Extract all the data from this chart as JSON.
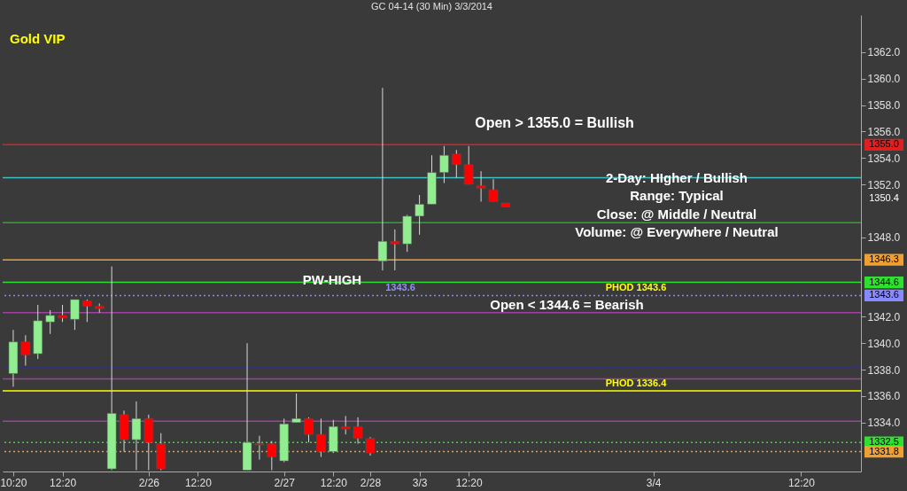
{
  "chart_data": {
    "type": "candlestick",
    "title": "GC 04-14 (30 Min)  3/3/2014",
    "categories": [
      "10:20",
      null,
      null,
      null,
      "12:20",
      null,
      null,
      null,
      null,
      null,
      null,
      "2/26",
      null,
      null,
      null,
      "12:20",
      null,
      null,
      null,
      null,
      null,
      null,
      "2/27",
      null,
      null,
      null,
      "12:20",
      null,
      null,
      "2/28",
      null,
      null,
      null,
      "3/3",
      null,
      null,
      null,
      "12:20",
      null,
      null,
      null,
      null,
      null,
      null,
      null,
      null,
      null,
      null,
      null,
      null,
      null,
      null,
      "3/4",
      null,
      null,
      null,
      null,
      null,
      null,
      null,
      null,
      null,
      null,
      null,
      "12:20",
      null,
      null,
      null,
      null
    ],
    "ohlc": [
      [
        1337.7,
        1341.0,
        1336.7,
        1340.1
      ],
      [
        1340.1,
        1340.6,
        1338.3,
        1339.1
      ],
      [
        1339.2,
        1342.9,
        1338.8,
        1341.7
      ],
      [
        1341.6,
        1342.5,
        1340.7,
        1342.1
      ],
      [
        1342.1,
        1342.9,
        1341.6,
        1341.9
      ],
      [
        1341.8,
        1343.3,
        1341.0,
        1343.3
      ],
      [
        1343.2,
        1343.3,
        1341.6,
        1342.8
      ],
      [
        1342.8,
        1343.0,
        1342.3,
        1342.6
      ],
      [
        1330.5,
        1345.8,
        1330.4,
        1334.7
      ],
      [
        1334.6,
        1334.9,
        1331.8,
        1332.7
      ],
      [
        1332.7,
        1335.6,
        1330.4,
        1334.3
      ],
      [
        1334.3,
        1334.6,
        1330.4,
        1332.5
      ],
      [
        1332.4,
        1333.2,
        1330.4,
        1330.5
      ],
      null,
      null,
      null,
      null,
      null,
      null,
      [
        1330.4,
        1340.0,
        1330.4,
        1332.5
      ],
      [
        1332.4,
        1333.0,
        1331.2,
        1332.3
      ],
      [
        1332.4,
        1332.6,
        1330.4,
        1331.4
      ],
      [
        1331.1,
        1334.3,
        1331.0,
        1333.9
      ],
      [
        1334.0,
        1336.2,
        1334.0,
        1334.3
      ],
      [
        1334.3,
        1334.4,
        1332.5,
        1333.1
      ],
      [
        1333.1,
        1334.3,
        1331.4,
        1331.8
      ],
      [
        1331.8,
        1334.2,
        1331.7,
        1333.7
      ],
      [
        1333.7,
        1334.5,
        1333.1,
        1333.5
      ],
      [
        1333.7,
        1334.4,
        1332.4,
        1332.8
      ],
      [
        1332.8,
        1332.9,
        1331.5,
        1331.7
      ],
      [
        1346.2,
        1359.3,
        1345.5,
        1347.7
      ],
      [
        1347.7,
        1348.6,
        1345.5,
        1347.5
      ],
      [
        1347.5,
        1349.7,
        1346.9,
        1349.6
      ],
      [
        1349.6,
        1351.2,
        1348.2,
        1350.5
      ],
      [
        1350.5,
        1354.2,
        1350.5,
        1352.9
      ],
      [
        1352.9,
        1354.9,
        1352.1,
        1354.2
      ],
      [
        1354.3,
        1354.6,
        1352.5,
        1353.5
      ],
      [
        1353.5,
        1354.9,
        1352.0,
        1352.0
      ],
      [
        1351.9,
        1353.0,
        1350.7,
        1351.7
      ],
      [
        1351.6,
        1352.4,
        1350.7,
        1350.7
      ],
      [
        1350.6,
        1350.6,
        1350.3,
        1350.3
      ],
      null,
      null,
      null,
      null,
      null,
      null,
      null,
      null,
      null,
      null,
      null,
      null,
      null,
      null,
      null,
      null,
      null,
      null,
      null,
      null,
      null,
      null,
      null,
      null,
      null,
      null,
      null,
      null
    ],
    "colors": [
      "#90ee90",
      "#ff0000",
      "#90ee90",
      "#90ee90",
      "#ff0000",
      "#90ee90",
      "#ff0000",
      "#ff0000",
      "#90ee90",
      "#ff0000",
      "#90ee90",
      "#ff0000",
      "#ff0000",
      null,
      null,
      null,
      null,
      null,
      null,
      "#90ee90",
      "#ff0000",
      "#ff0000",
      "#90ee90",
      "#90ee90",
      "#ff0000",
      "#ff0000",
      "#90ee90",
      "#ff0000",
      "#ff0000",
      "#ff0000",
      "#90ee90",
      "#ff0000",
      "#90ee90",
      "#90ee90",
      "#90ee90",
      "#90ee90",
      "#ff0000",
      "#ff0000",
      "#ff0000",
      "#ff0000",
      "#ff0000",
      null,
      null,
      null,
      null,
      null,
      null,
      null,
      null,
      null,
      null,
      null,
      null,
      null,
      null,
      null,
      null,
      null,
      null,
      null,
      null,
      null,
      null,
      null,
      null,
      null,
      null,
      null,
      null
    ],
    "ylim": [
      1330.3,
      1364.8
    ],
    "yticks": [
      {
        "value": 1334,
        "label": "1334.0"
      },
      {
        "value": 1336,
        "label": "1336.0"
      },
      {
        "value": 1338,
        "label": "1338.0"
      },
      {
        "value": 1340,
        "label": "1340.0"
      },
      {
        "value": 1342,
        "label": "1342.0"
      },
      {
        "value": 1348,
        "label": "1348.0"
      },
      {
        "value": 1352,
        "label": "1352.0"
      },
      {
        "value": 1354,
        "label": "1354.0"
      },
      {
        "value": 1356,
        "label": "1356.0"
      },
      {
        "value": 1358,
        "label": "1358.0"
      },
      {
        "value": 1360,
        "label": "1360.0"
      },
      {
        "value": 1362,
        "label": "1362.0"
      }
    ],
    "ref_lines": [
      {
        "axis": "y",
        "value": 1355.0,
        "label": "1355.0",
        "color": "#e02020"
      },
      {
        "axis": "y",
        "value": 1352.5,
        "label": null,
        "color": "#40c0c0"
      },
      {
        "axis": "y",
        "value": 1349.1,
        "label": null,
        "color": "#20b020"
      },
      {
        "axis": "y",
        "value": 1346.3,
        "label": "1346.3",
        "color": "#f0a030"
      },
      {
        "axis": "y",
        "value": 1344.6,
        "label": "1344.6",
        "color": "#30e030"
      },
      {
        "axis": "y",
        "value": 1343.6,
        "label": "1343.6",
        "color": "#8888ff",
        "line_style": "dotted"
      },
      {
        "axis": "y",
        "value": 1342.3,
        "label": null,
        "color": "#a040a0"
      },
      {
        "axis": "y",
        "value": 1338.2,
        "label": null,
        "color": "#303080"
      },
      {
        "axis": "y",
        "value": 1337.3,
        "label": null,
        "color": "#a040a0"
      },
      {
        "axis": "y",
        "value": 1336.4,
        "label": null,
        "color": "#ffff00"
      },
      {
        "axis": "y",
        "value": 1334.1,
        "label": null,
        "color": "#a040a0"
      },
      {
        "axis": "y",
        "value": 1332.5,
        "label": "1332.5",
        "color": "#30e030",
        "line_style": "dotted"
      },
      {
        "axis": "y",
        "value": 1331.8,
        "label": "1331.8",
        "color": "#f0a030",
        "line_style": "dotted"
      }
    ],
    "annotations": [
      "Gold VIP",
      "Open > 1355.0 = Bullish",
      "2-Day:  HIgher / Bullish",
      "Range: Typical",
      "Close:  @ Middle / Neutral",
      "Volume: @ Everywhere / Neutral",
      "PW-HIGH",
      "Open < 1344.6 = Bearish",
      {
        "text": "PHOD 1343.6",
        "y": 1343.6
      },
      {
        "text": "PHOD 1336.4",
        "y": 1336.4
      },
      {
        "text": "1343.6",
        "y": 1343.6
      },
      "1350.4"
    ]
  }
}
